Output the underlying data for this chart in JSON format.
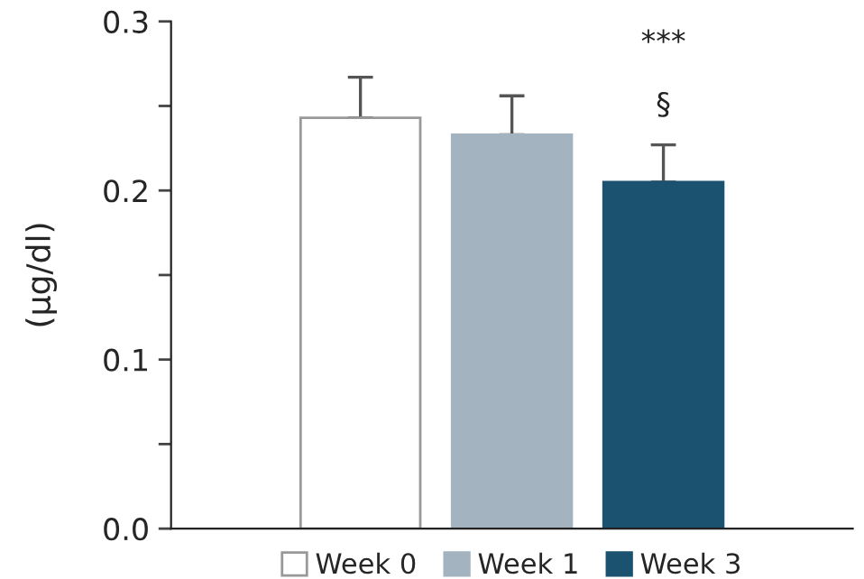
{
  "chart_data": {
    "type": "bar",
    "ylabel": "(µg/dl)",
    "categories": [
      null,
      null,
      null
    ],
    "series": [
      {
        "name": "Week 0",
        "color": "#ffffff",
        "values": [
          0.243,
          null,
          null
        ],
        "errors": [
          [
            0.243,
            0.267
          ],
          null,
          null
        ]
      },
      {
        "name": "Week 1",
        "color": "#a3b3c0",
        "values": [
          null,
          0.233,
          null
        ],
        "errors": [
          null,
          [
            0.233,
            0.256
          ],
          null
        ]
      },
      {
        "name": "Week 3",
        "color": "#1a5270",
        "values": [
          null,
          null,
          0.205
        ],
        "errors": [
          null,
          null,
          [
            0.205,
            0.227
          ]
        ]
      }
    ],
    "ylim": [
      0,
      0.3
    ],
    "yticks": [
      {
        "value": 0,
        "label": "0.0"
      },
      {
        "value": 0.05,
        "label": null
      },
      {
        "value": 0.1,
        "label": "0.1"
      },
      {
        "value": 0.15,
        "label": null
      },
      {
        "value": 0.2,
        "label": "0.2"
      },
      {
        "value": 0.25,
        "label": null
      },
      {
        "value": 0.3,
        "label": "0.3"
      }
    ],
    "annotations": [
      "***",
      "§"
    ],
    "grid": false,
    "legend": "bottom"
  }
}
